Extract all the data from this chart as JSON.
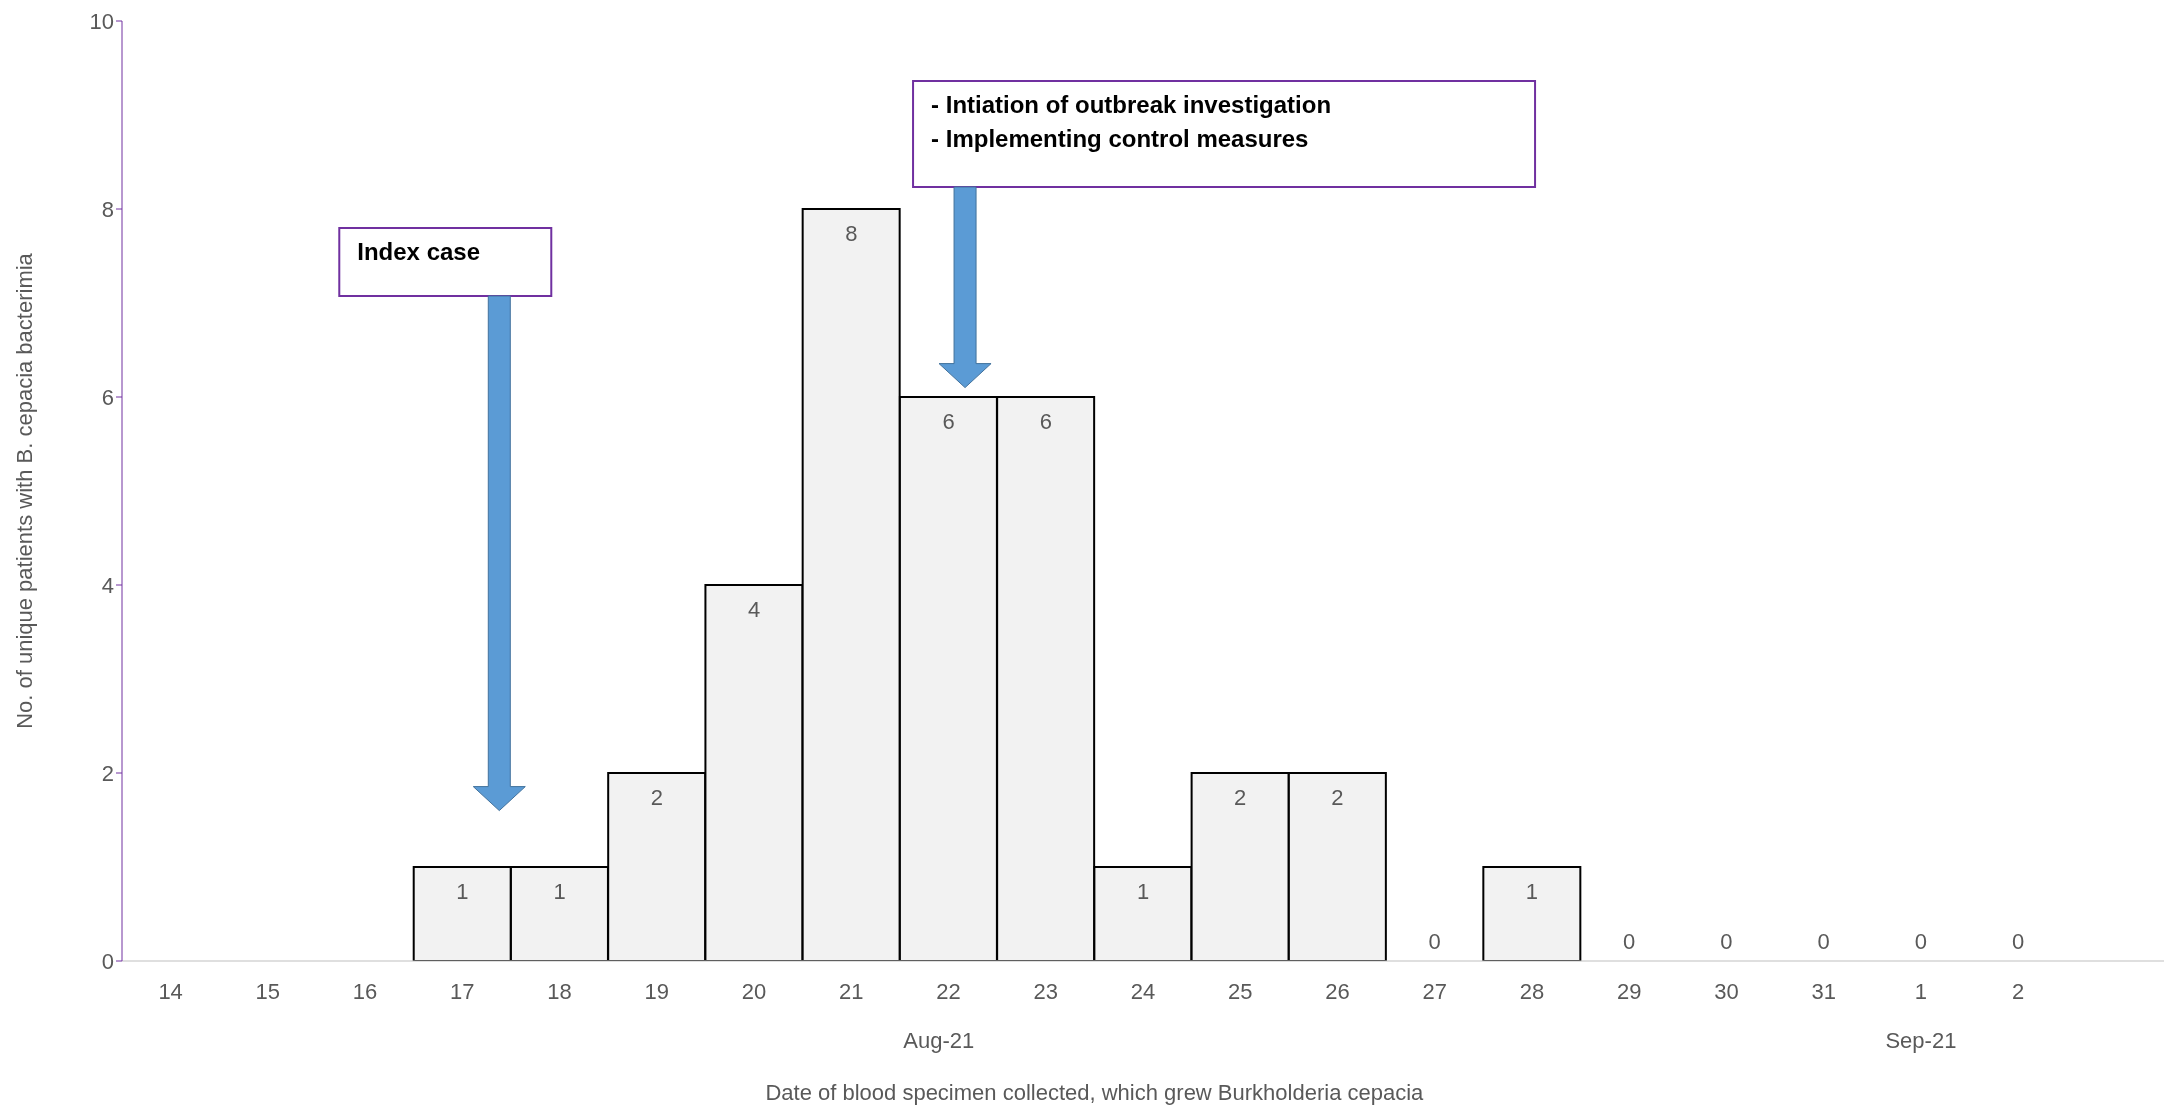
{
  "chart_data": {
    "type": "bar",
    "categories": [
      "14",
      "15",
      "16",
      "17",
      "18",
      "19",
      "20",
      "21",
      "22",
      "23",
      "24",
      "25",
      "26",
      "27",
      "28",
      "29",
      "30",
      "31",
      "1",
      "2",
      null
    ],
    "values": [
      null,
      null,
      null,
      1,
      1,
      2,
      4,
      8,
      6,
      6,
      1,
      2,
      2,
      0,
      1,
      0,
      0,
      0,
      0,
      0,
      null
    ],
    "color": "#f2f2f2",
    "ylim": [
      0,
      10
    ],
    "yticks": [
      0,
      2,
      4,
      6,
      8,
      10
    ],
    "ylabel": "No. of unique patients with B. cepacia  bacterimia",
    "xlabel": "Date of blood specimen collected, which grew Burkholderia cepacia",
    "data_labels": true,
    "grid": false,
    "legend": false,
    "annotations": [
      "Index case",
      "- Intiation of outbreak investigation\n- Implementing control measures",
      "Aug-21",
      "Sep-21"
    ]
  }
}
